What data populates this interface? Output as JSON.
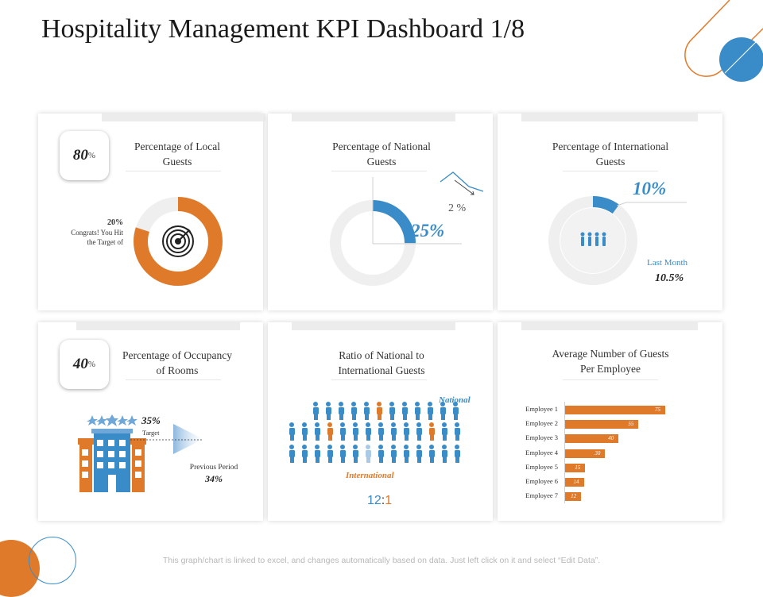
{
  "page": {
    "title": "Hospitality Management KPI Dashboard 1/8"
  },
  "colors": {
    "orange": "#e07a2b",
    "blue": "#3a8cc8",
    "gray": "#efefef"
  },
  "cards": {
    "local": {
      "title_line1": "Percentage of Local",
      "title_line2": "Guests",
      "percent_value": "80",
      "percent_sign": "%",
      "donut_share": 0.8,
      "note_percent": "20%",
      "note_line1": "Congrats! You Hit",
      "note_line2": "the Target of",
      "icon": "target-icon"
    },
    "national": {
      "title_line1": "Percentage of National",
      "title_line2": "Guests",
      "value": "25%",
      "change": "2 %",
      "arc_share": 0.25,
      "trend": "down"
    },
    "international": {
      "title_line1": "Percentage of International",
      "title_line2": "Guests",
      "value": "10%",
      "arc_share": 0.1,
      "last_month_label": "Last Month",
      "last_month_value": "10.5%",
      "icon": "people-group-icon"
    },
    "occupancy": {
      "title_line1": "Percentage of Occupancy",
      "title_line2": "of Rooms",
      "percent_value": "40",
      "percent_sign": "%",
      "target_value": "35%",
      "target_label": "Target",
      "previous_label": "Previous Period",
      "previous_value": "34%",
      "icon": "hotel-building-icon"
    },
    "ratio": {
      "title_line1": "Ratio of National to",
      "title_line2": "International Guests",
      "national_label": "National",
      "international_label": "International",
      "ratio_left": "12",
      "ratio_sep": ":",
      "ratio_right": "1"
    },
    "employees": {
      "title_line1": "Average Number of Guests",
      "title_line2": "Per Employee"
    }
  },
  "chart_data": {
    "type": "bar",
    "orientation": "horizontal",
    "title": "Average Number of Guests Per Employee",
    "categories": [
      "Employee 1",
      "Employee 2",
      "Employee 3",
      "Employee 4",
      "Employee 5",
      "Employee 6",
      "Employee 7"
    ],
    "values": [
      75,
      55,
      40,
      30,
      15,
      14,
      12
    ],
    "value_labels": [
      "75",
      "55",
      "40",
      "30",
      "15",
      "14",
      "12"
    ],
    "xlim": [
      0,
      75
    ]
  },
  "footer": {
    "text": "This graph/chart is linked to excel, and changes automatically based on data. Just left click on it and select “Edit Data”."
  }
}
